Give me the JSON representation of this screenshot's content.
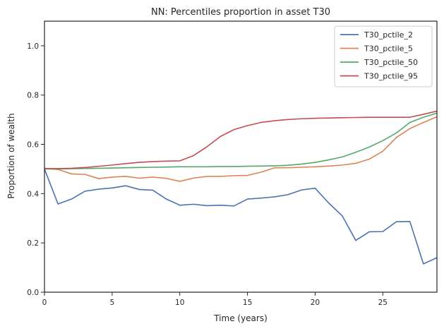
{
  "chart_data": {
    "type": "line",
    "title": "NN: Percentiles proportion in asset T30",
    "xlabel": "Time (years)",
    "ylabel": "Proportion of wealth",
    "xlim": [
      0,
      29
    ],
    "ylim": [
      0,
      1.1
    ],
    "xticks": [
      0,
      5,
      10,
      15,
      20,
      25
    ],
    "yticks": [
      0.0,
      0.2,
      0.4,
      0.6,
      0.8,
      1.0
    ],
    "xtick_labels": [
      "0",
      "5",
      "10",
      "15",
      "20",
      "25"
    ],
    "ytick_labels": [
      "0.0",
      "0.2",
      "0.4",
      "0.6",
      "0.8",
      "1.0"
    ],
    "grid": false,
    "legend_position": "top-right",
    "x": [
      0,
      1,
      2,
      3,
      4,
      5,
      6,
      7,
      8,
      9,
      10,
      11,
      12,
      13,
      14,
      15,
      16,
      17,
      18,
      19,
      20,
      21,
      22,
      23,
      24,
      25,
      26,
      27,
      28,
      29
    ],
    "series": [
      {
        "name": "T30_pctile_2",
        "color": "#4c72b0",
        "values": [
          0.5,
          0.358,
          0.378,
          0.41,
          0.418,
          0.423,
          0.432,
          0.417,
          0.414,
          0.378,
          0.353,
          0.357,
          0.351,
          0.353,
          0.35,
          0.378,
          0.382,
          0.387,
          0.396,
          0.415,
          0.422,
          0.362,
          0.31,
          0.21,
          0.245,
          0.246,
          0.286,
          0.287,
          0.115,
          0.14
        ]
      },
      {
        "name": "T30_pctile_5",
        "color": "#dd8452",
        "values": [
          0.503,
          0.498,
          0.48,
          0.478,
          0.461,
          0.467,
          0.47,
          0.463,
          0.467,
          0.462,
          0.45,
          0.463,
          0.47,
          0.47,
          0.473,
          0.474,
          0.487,
          0.505,
          0.505,
          0.507,
          0.509,
          0.512,
          0.516,
          0.523,
          0.54,
          0.572,
          0.628,
          0.664,
          0.689,
          0.712
        ]
      },
      {
        "name": "T30_pctile_50",
        "color": "#55a868",
        "values": [
          0.5,
          0.5,
          0.501,
          0.502,
          0.503,
          0.504,
          0.505,
          0.506,
          0.507,
          0.508,
          0.509,
          0.509,
          0.509,
          0.51,
          0.51,
          0.511,
          0.512,
          0.513,
          0.515,
          0.52,
          0.527,
          0.537,
          0.549,
          0.568,
          0.589,
          0.615,
          0.646,
          0.689,
          0.71,
          0.727
        ]
      },
      {
        "name": "T30_pctile_95",
        "color": "#c44e52",
        "values": [
          0.502,
          0.502,
          0.503,
          0.506,
          0.511,
          0.516,
          0.522,
          0.527,
          0.53,
          0.532,
          0.533,
          0.554,
          0.59,
          0.632,
          0.66,
          0.676,
          0.689,
          0.696,
          0.701,
          0.704,
          0.706,
          0.707,
          0.708,
          0.709,
          0.71,
          0.71,
          0.71,
          0.71,
          0.722,
          0.735
        ]
      }
    ]
  }
}
